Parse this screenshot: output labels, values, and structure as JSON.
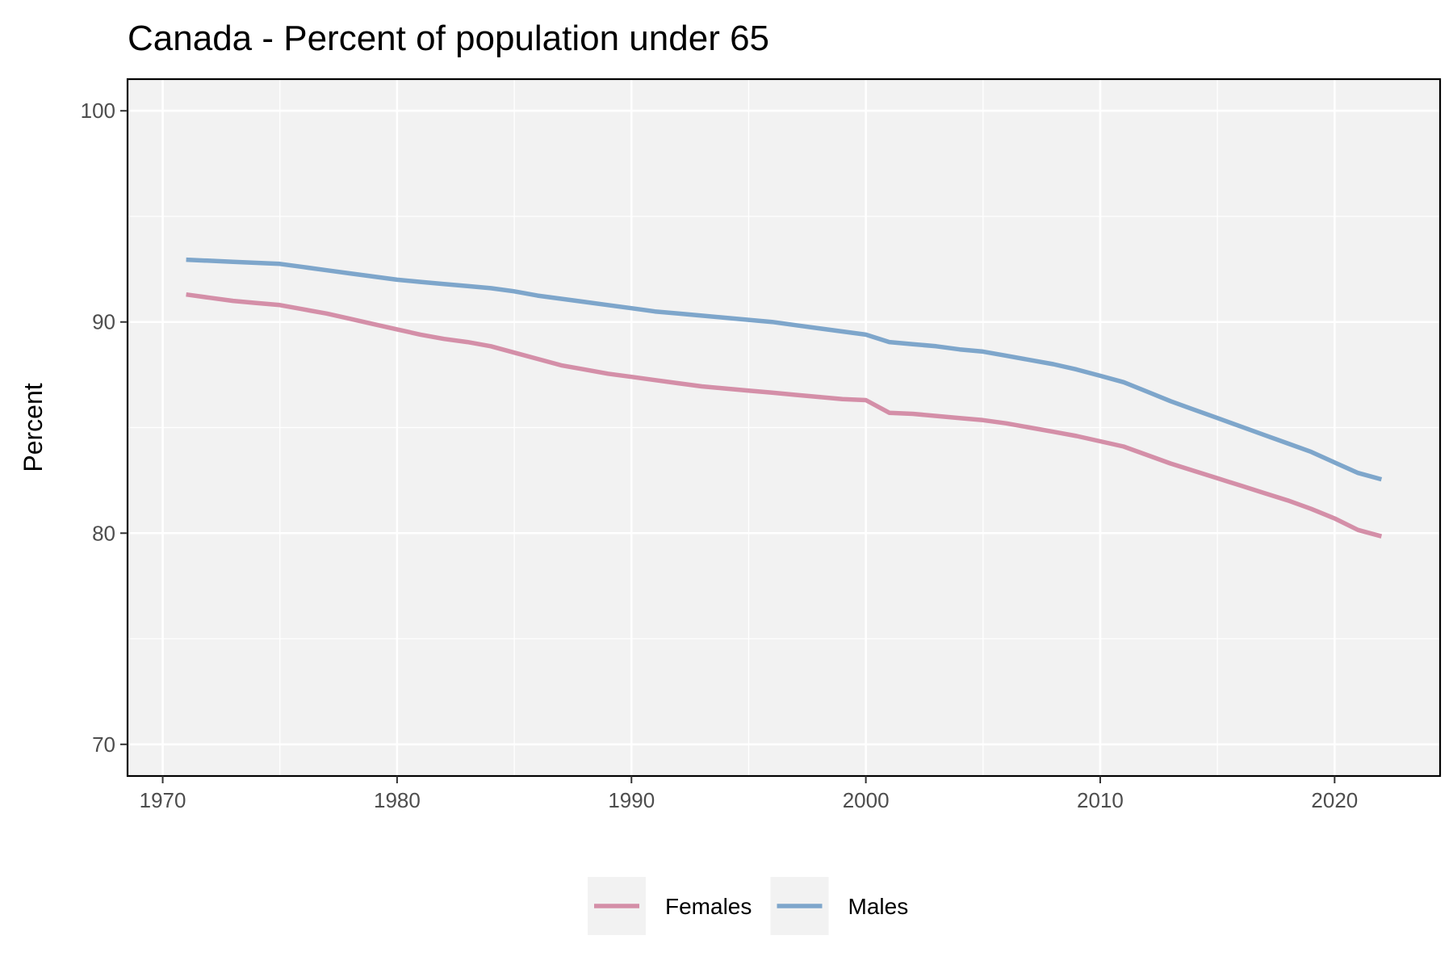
{
  "chart_data": {
    "type": "line",
    "title": "Canada - Percent of population under 65",
    "xlabel": "",
    "ylabel": "Percent",
    "xlim": [
      1968.5,
      2024.5
    ],
    "ylim": [
      68.5,
      101.5
    ],
    "x_ticks": [
      1970,
      1980,
      1990,
      2000,
      2010,
      2020
    ],
    "y_ticks": [
      70,
      80,
      90,
      100
    ],
    "x_minor_ticks": [
      1975,
      1985,
      1995,
      2005,
      2015
    ],
    "y_minor_ticks": [
      75,
      85,
      95
    ],
    "grid": true,
    "legend_position": "bottom",
    "background_color": "#f2f2f2",
    "grid_color": "#ffffff",
    "x": [
      1971,
      1972,
      1973,
      1974,
      1975,
      1976,
      1977,
      1978,
      1979,
      1980,
      1981,
      1982,
      1983,
      1984,
      1985,
      1986,
      1987,
      1988,
      1989,
      1990,
      1991,
      1992,
      1993,
      1994,
      1995,
      1996,
      1997,
      1998,
      1999,
      2000,
      2001,
      2002,
      2003,
      2004,
      2005,
      2006,
      2007,
      2008,
      2009,
      2010,
      2011,
      2012,
      2013,
      2014,
      2015,
      2016,
      2017,
      2018,
      2019,
      2020,
      2021,
      2022
    ],
    "series": [
      {
        "name": "Females",
        "color": "#d48fa8",
        "values": [
          91.3,
          91.15,
          91.0,
          90.9,
          90.8,
          90.6,
          90.4,
          90.15,
          89.9,
          89.65,
          89.4,
          89.2,
          89.05,
          88.85,
          88.55,
          88.25,
          87.95,
          87.75,
          87.55,
          87.4,
          87.25,
          87.1,
          86.95,
          86.85,
          86.75,
          86.65,
          86.55,
          86.45,
          86.35,
          86.3,
          85.7,
          85.65,
          85.55,
          85.45,
          85.35,
          85.2,
          85.0,
          84.8,
          84.6,
          84.35,
          84.1,
          83.7,
          83.3,
          82.95,
          82.6,
          82.25,
          81.9,
          81.55,
          81.15,
          80.7,
          80.15,
          79.85
        ]
      },
      {
        "name": "Males",
        "color": "#7ea6cb",
        "values": [
          92.95,
          92.9,
          92.85,
          92.8,
          92.75,
          92.6,
          92.45,
          92.3,
          92.15,
          92.0,
          91.9,
          91.8,
          91.7,
          91.6,
          91.45,
          91.25,
          91.1,
          90.95,
          90.8,
          90.65,
          90.5,
          90.4,
          90.3,
          90.2,
          90.1,
          90.0,
          89.85,
          89.7,
          89.55,
          89.4,
          89.05,
          88.95,
          88.85,
          88.7,
          88.6,
          88.4,
          88.2,
          88.0,
          87.75,
          87.45,
          87.15,
          86.7,
          86.25,
          85.85,
          85.45,
          85.05,
          84.65,
          84.25,
          83.85,
          83.35,
          82.85,
          82.55
        ]
      }
    ]
  }
}
